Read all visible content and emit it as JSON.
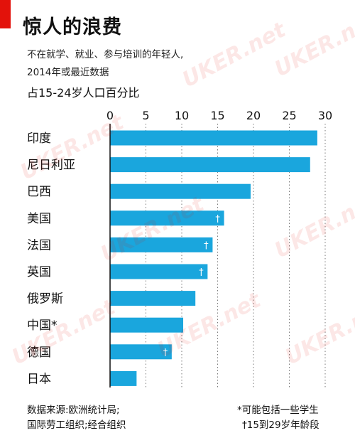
{
  "title": "惊人的浪费",
  "subtitle_line1": "不在就学、就业、参与培训的年轻人,",
  "subtitle_line2": "2014年或最近数据",
  "unit_label": "占15-24岁人口百分比",
  "footer": {
    "source_line1": "数据来源:欧洲统计局;",
    "source_line2": "国际劳工组织;经合组织",
    "note1": "*可能包括一些学生",
    "note2": "†15到29岁年龄段"
  },
  "watermark": "UKER.net",
  "colors": {
    "bar": "#1aa6dd",
    "accent": "#e3120b",
    "marker": "#ffffff"
  },
  "chart_data": {
    "type": "bar",
    "orientation": "horizontal",
    "categories": [
      "印度",
      "尼日利亚",
      "巴西",
      "美国",
      "法国",
      "英国",
      "俄罗斯",
      "中国*",
      "德国",
      "日本"
    ],
    "values": [
      28.9,
      27.9,
      19.6,
      15.9,
      14.3,
      13.6,
      11.9,
      10.2,
      8.6,
      3.7
    ],
    "markers": [
      "",
      "",
      "",
      "†",
      "†",
      "†",
      "",
      "",
      "†",
      ""
    ],
    "x_ticks": [
      0,
      5,
      10,
      15,
      20,
      25,
      30
    ],
    "xlim": [
      0,
      30
    ],
    "grid": "vertical dotted",
    "title": "惊人的浪费",
    "xlabel": "",
    "ylabel": ""
  }
}
